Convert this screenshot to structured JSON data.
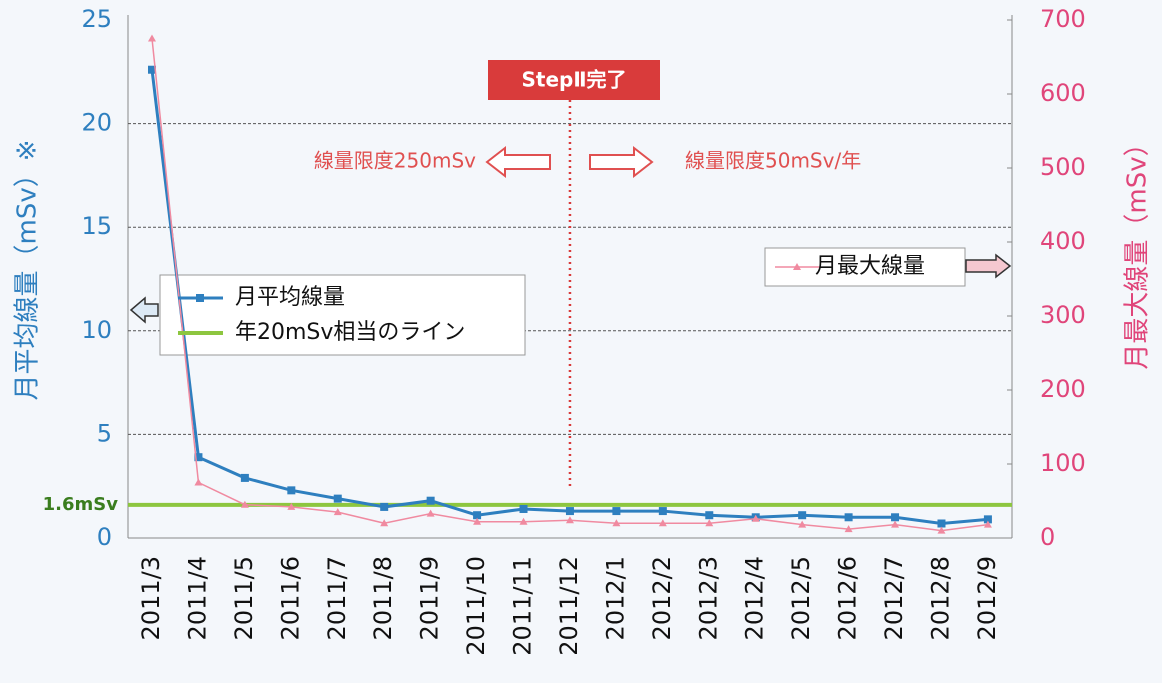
{
  "chart_data": {
    "type": "line",
    "categories": [
      "2011/3",
      "2011/4",
      "2011/5",
      "2011/6",
      "2011/7",
      "2011/8",
      "2011/9",
      "2011/10",
      "2011/11",
      "2011/12",
      "2012/1",
      "2012/2",
      "2012/3",
      "2012/4",
      "2012/5",
      "2012/6",
      "2012/7",
      "2012/8",
      "2012/9"
    ],
    "series": [
      {
        "name": "月平均線量",
        "color": "#2e7fbf",
        "values": [
          22.6,
          3.9,
          2.9,
          2.3,
          1.9,
          1.5,
          1.8,
          1.1,
          1.4,
          1.3,
          1.3,
          1.3,
          1.1,
          1.0,
          1.1,
          1.0,
          1.0,
          0.7,
          0.9
        ]
      },
      {
        "name": "月最大線量",
        "color": "#f08aa0",
        "axis": "y2",
        "values": [
          675,
          75,
          45,
          42,
          35,
          20,
          33,
          22,
          22,
          24,
          20,
          20,
          20,
          26,
          18,
          12,
          18,
          10,
          18
        ]
      }
    ],
    "ylim": [
      0,
      25
    ],
    "yticks": [
      0,
      5,
      10,
      15,
      20,
      25
    ],
    "y2lim": [
      0,
      700
    ],
    "y2ticks": [
      0,
      100,
      200,
      300,
      400,
      500,
      600,
      700
    ],
    "ylabel": "月平均線量（mSv）※",
    "y2label": "月最大線量（mSv）",
    "grid": true,
    "reference_line": {
      "name": "年20mSv相当のライン",
      "value": 1.6,
      "label": "1.6mSv",
      "color": "#8dc63f"
    },
    "step_line": {
      "category": "2011/12",
      "label": "StepⅡ完了",
      "color": "#d93b3b"
    },
    "annotations": [
      "線量限度250mSv",
      "線量限度50mSv/年"
    ]
  }
}
